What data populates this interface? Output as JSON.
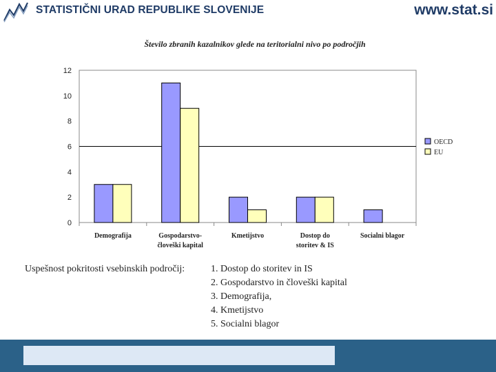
{
  "header": {
    "org_name": "STATISTIČNI URAD REPUBLIKE SLOVENIJE",
    "site_url": "www.stat.si"
  },
  "chart_data": {
    "type": "bar",
    "title": "Število zbranih kazalnikov glede na teritorialni nivo po področjih",
    "categories": [
      [
        "Demografija"
      ],
      [
        "Gospodarstvo-",
        "človeški kapital"
      ],
      [
        "Kmetijstvo"
      ],
      [
        "Dostop do",
        "storitev & IS"
      ],
      [
        "Socialni blagor"
      ]
    ],
    "series": [
      {
        "name": "OECD",
        "values": [
          3,
          11,
          2,
          2,
          1
        ],
        "color": "#9999ff"
      },
      {
        "name": "EU",
        "values": [
          3,
          9,
          1,
          2,
          0
        ],
        "color": "#ffffbb"
      }
    ],
    "ylim": [
      0,
      12
    ],
    "yticks": [
      0,
      2,
      4,
      6,
      8,
      10,
      12
    ],
    "xlabel": "",
    "ylabel": "",
    "reference_line": 6,
    "legend_position": "right"
  },
  "summary": {
    "label": "Uspešnost pokritosti vsebinskih področij:",
    "items": [
      "1. Dostop do storitev in IS",
      "2. Gospodarstvo in človeški kapital",
      "3. Demografija,",
      "4. Kmetijstvo",
      "5. Socialni blagor"
    ]
  }
}
